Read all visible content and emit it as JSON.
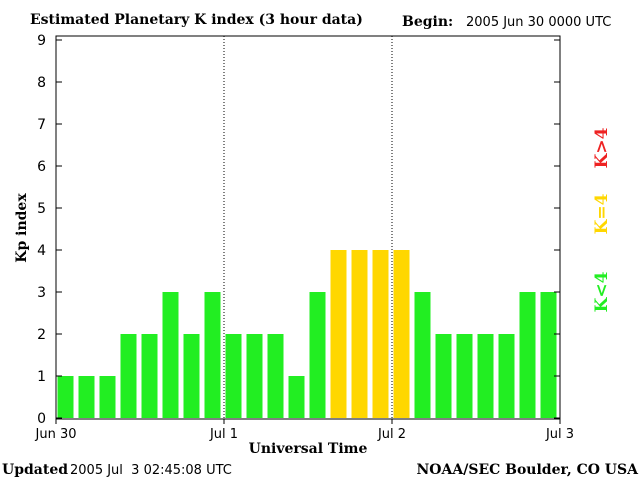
{
  "header": {
    "title": "Estimated Planetary K index (3 hour data)",
    "begin_label": "Begin:",
    "begin_value": "2005 Jun 30 0000 UTC"
  },
  "footer": {
    "updated_label": "Updated",
    "updated_value": "2005 Jul  3 02:45:08 UTC",
    "credit": "NOAA/SEC Boulder, CO USA"
  },
  "legend": {
    "items": [
      {
        "label": "K<4",
        "color": "#22ee22"
      },
      {
        "label": "K=4",
        "color": "#ffd700"
      },
      {
        "label": "K>4",
        "color": "#ee2222"
      }
    ]
  },
  "chart_data": {
    "type": "bar",
    "ylabel": "Kp index",
    "xlabel": "Universal Time",
    "ylim": [
      0,
      9
    ],
    "yticks": [
      "0",
      "1",
      "2",
      "3",
      "4",
      "5",
      "6",
      "7",
      "8",
      "9"
    ],
    "xticks": [
      "Jun 30",
      "Jul 1",
      "Jul 2",
      "Jul 3"
    ],
    "day_separators": [
      "Jul 1",
      "Jul 2"
    ],
    "bars_per_day": 8,
    "values": [
      1,
      1,
      1,
      2,
      2,
      3,
      2,
      3,
      2,
      2,
      2,
      1,
      3,
      4,
      4,
      4,
      4,
      3,
      2,
      2,
      2,
      2,
      3,
      3
    ],
    "colors": {
      "below": "#22ee22",
      "equal": "#ffd700",
      "above": "#ee2222"
    }
  }
}
